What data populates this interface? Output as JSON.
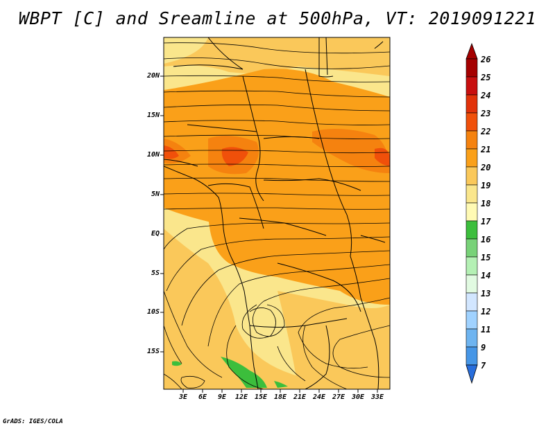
{
  "title": "WBPT [C] and Sreamline at 500hPa, VT: 2019091221",
  "credit": "GrADS: IGES/COLA",
  "map": {
    "lat_labels": [
      "20N",
      "15N",
      "10N",
      "5N",
      "EQ",
      "5S",
      "10S",
      "15S"
    ],
    "lon_labels": [
      "3E",
      "6E",
      "9E",
      "12E",
      "15E",
      "18E",
      "21E",
      "24E",
      "27E",
      "30E",
      "33E"
    ],
    "field": "wet-bulb potential temperature",
    "units": "C",
    "level": "500hPa",
    "valid_time": "2019091221"
  },
  "colorbar": {
    "labels": [
      "26",
      "25",
      "24",
      "23",
      "22",
      "21",
      "20",
      "19",
      "18",
      "17",
      "16",
      "15",
      "14",
      "13",
      "12",
      "11",
      "9",
      "7"
    ],
    "colors": [
      "#a50000",
      "#c80f0f",
      "#e1320a",
      "#f0500a",
      "#f5820f",
      "#faa019",
      "#fac85a",
      "#fae68c",
      "#fffab4",
      "#3cbe3c",
      "#78d278",
      "#b4f0b4",
      "#e1fae1",
      "#d2e6ff",
      "#a0d2ff",
      "#6eb4f0",
      "#4696e6",
      "#286edc"
    ]
  }
}
